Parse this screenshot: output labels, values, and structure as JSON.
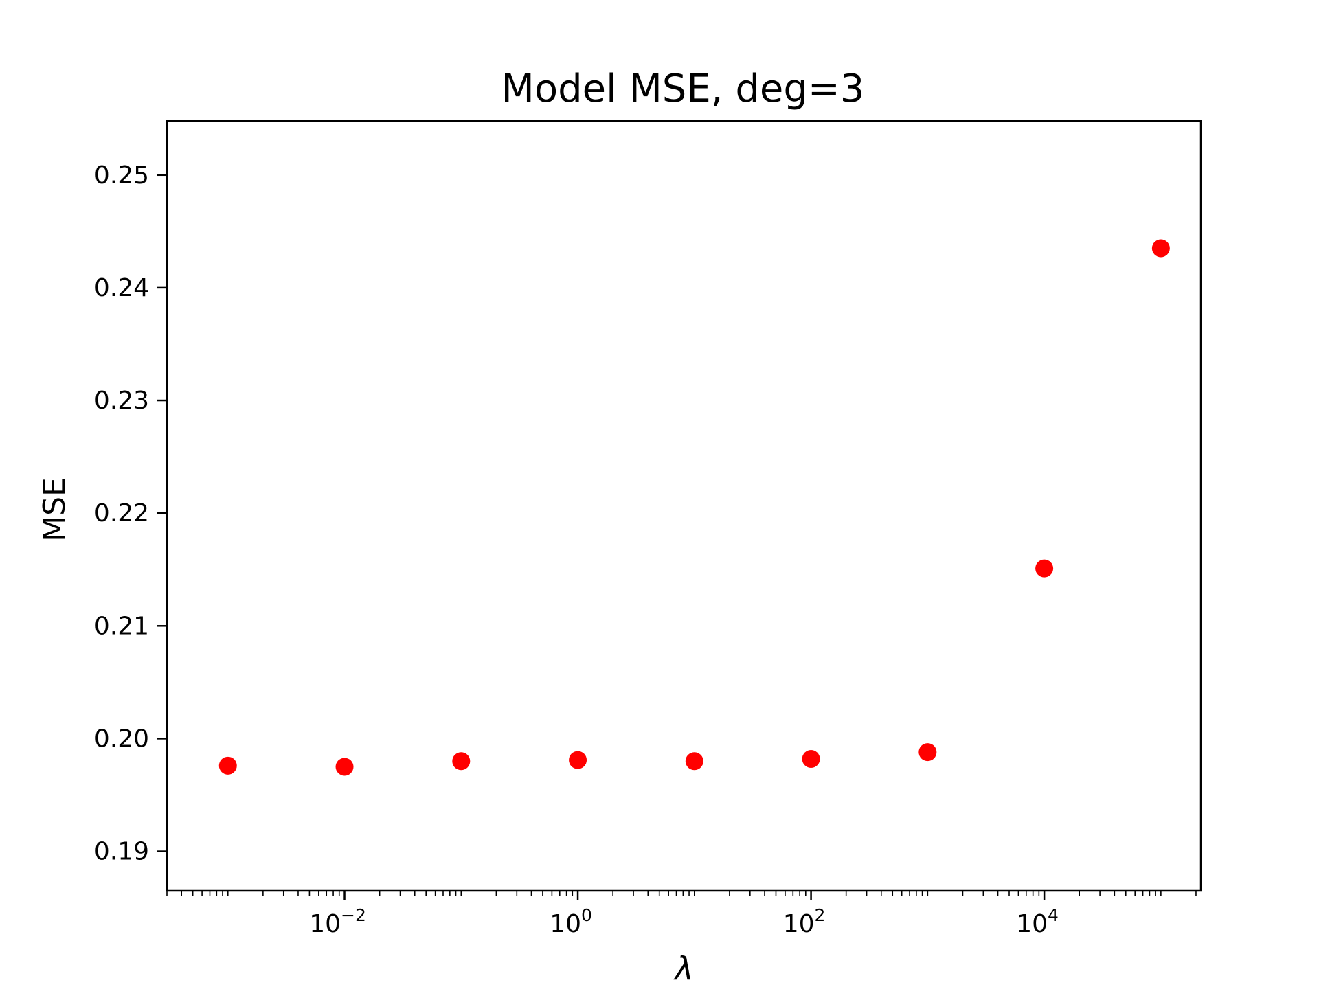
{
  "chart_data": {
    "type": "scatter",
    "title": "Model MSE, deg=3",
    "xlabel": "λ",
    "ylabel": "MSE",
    "x_scale": "log",
    "x": [
      0.001,
      0.01,
      0.1,
      1,
      10,
      100,
      1000,
      10000,
      100000
    ],
    "y": [
      0.1976,
      0.1975,
      0.198,
      0.1981,
      0.198,
      0.1982,
      0.1988,
      0.2151,
      0.2435
    ],
    "xlim": [
      0.0003,
      220000
    ],
    "ylim": [
      0.1865,
      0.2548
    ],
    "x_ticks": [
      {
        "value": 0.01,
        "base": "10",
        "exp": "−2"
      },
      {
        "value": 1,
        "base": "10",
        "exp": "0"
      },
      {
        "value": 100,
        "base": "10",
        "exp": "2"
      },
      {
        "value": 10000,
        "base": "10",
        "exp": "4"
      }
    ],
    "y_ticks": [
      {
        "value": 0.19,
        "label": "0.19"
      },
      {
        "value": 0.2,
        "label": "0.20"
      },
      {
        "value": 0.21,
        "label": "0.21"
      },
      {
        "value": 0.22,
        "label": "0.22"
      },
      {
        "value": 0.23,
        "label": "0.23"
      },
      {
        "value": 0.24,
        "label": "0.24"
      },
      {
        "value": 0.25,
        "label": "0.25"
      }
    ],
    "marker_color": "#ff0000",
    "grid": false,
    "legend": "none"
  }
}
